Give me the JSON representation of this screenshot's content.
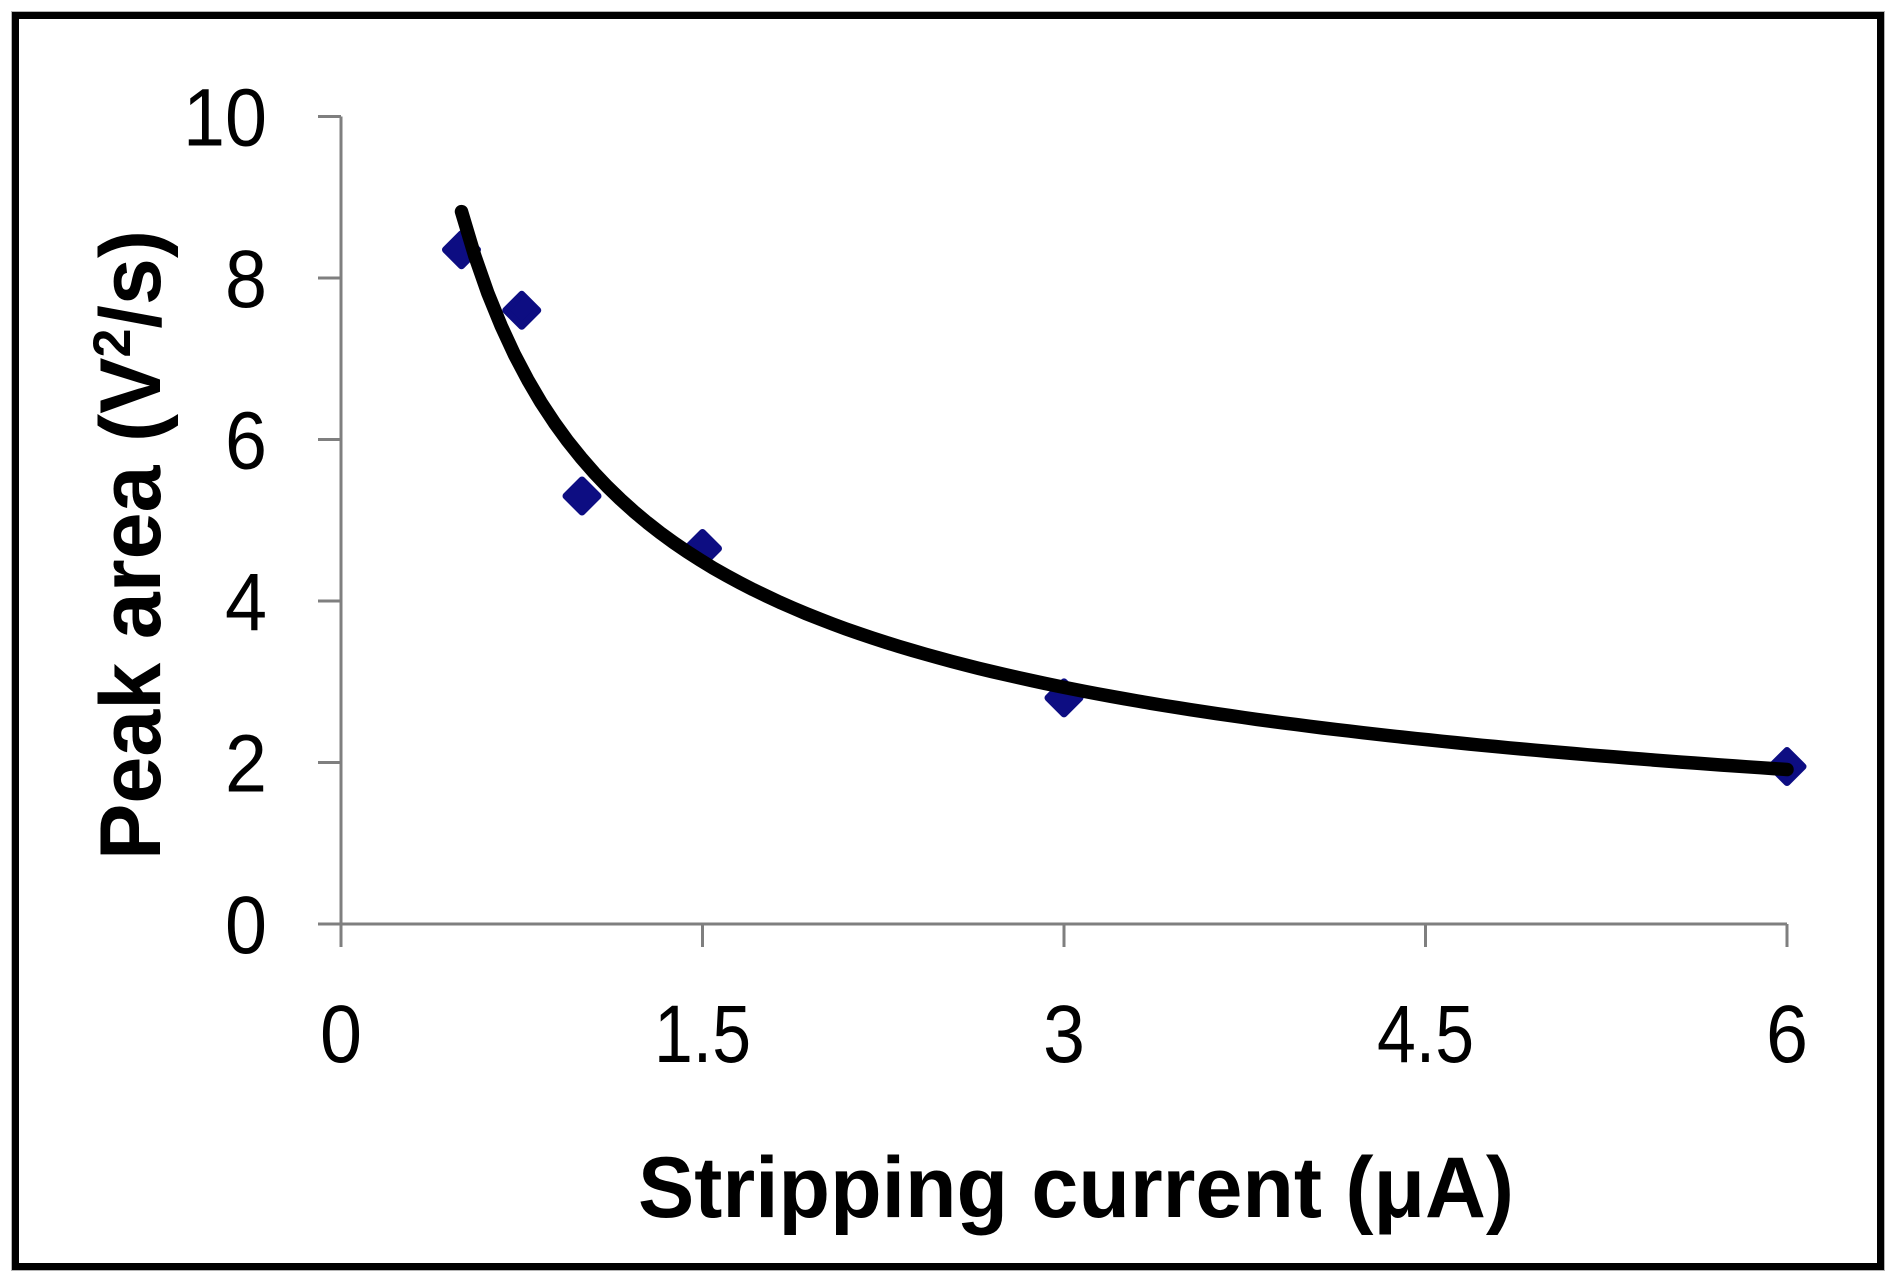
{
  "chart_data": {
    "type": "scatter",
    "title": "",
    "xlabel": "Stripping current (μA)",
    "ylabel": "Peak area (V²/s)",
    "ylabel_parts": [
      "Peak area (V",
      "2",
      "/s)"
    ],
    "xlim": [
      0,
      6
    ],
    "ylim": [
      0,
      10
    ],
    "x_tick_values": [
      0,
      1.5,
      3,
      4.5,
      6
    ],
    "x_tick_labels": [
      "0",
      "1.5",
      "3",
      "4.5",
      "6"
    ],
    "y_tick_values": [
      0,
      2,
      4,
      6,
      8,
      10
    ],
    "y_tick_labels": [
      "0",
      "2",
      "4",
      "6",
      "8",
      "10"
    ],
    "grid": false,
    "legend_position": "none",
    "series": [
      {
        "name": "peak-area-vs-stripping-current",
        "marker": "diamond",
        "points": [
          {
            "x": 0.5,
            "y": 8.35
          },
          {
            "x": 0.75,
            "y": 7.6
          },
          {
            "x": 1.0,
            "y": 5.3
          },
          {
            "x": 1.5,
            "y": 4.65
          },
          {
            "x": 3.0,
            "y": 2.8
          },
          {
            "x": 6.0,
            "y": 1.95
          }
        ]
      }
    ],
    "trendline": {
      "type": "power",
      "a": 5.76,
      "b": -0.615,
      "x_start": 0.5,
      "x_end": 6.0
    },
    "colors": {
      "marker": "#0d0d82",
      "trendline": "#000000",
      "axis": "#7f7f7f",
      "text": "#000000",
      "background": "#ffffff",
      "border": "#000000"
    }
  }
}
